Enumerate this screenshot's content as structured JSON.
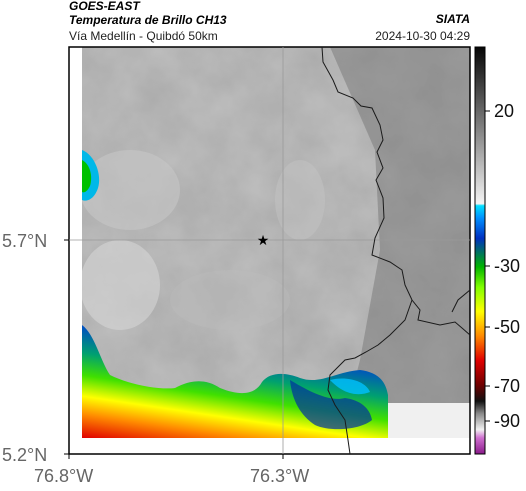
{
  "header": {
    "satellite": "GOES-EAST",
    "product": "Temperatura de Brillo CH13",
    "region": "Vía Medellín - Quibdó 50km",
    "source": "SIATA",
    "timestamp": "2024-10-30 04:29"
  },
  "axes": {
    "y_ticks": [
      "5.7°N",
      "5.2°N"
    ],
    "x_ticks": [
      "76.8°W",
      "76.3°W"
    ]
  },
  "colorbar": {
    "ticks": [
      "20",
      "-30",
      "-50",
      "-70",
      "-90"
    ]
  },
  "colors": {
    "frame": "#000000",
    "grid": "#9a9a9a",
    "border": "#1a1a1a"
  },
  "icons": {
    "marker": "star-icon"
  }
}
